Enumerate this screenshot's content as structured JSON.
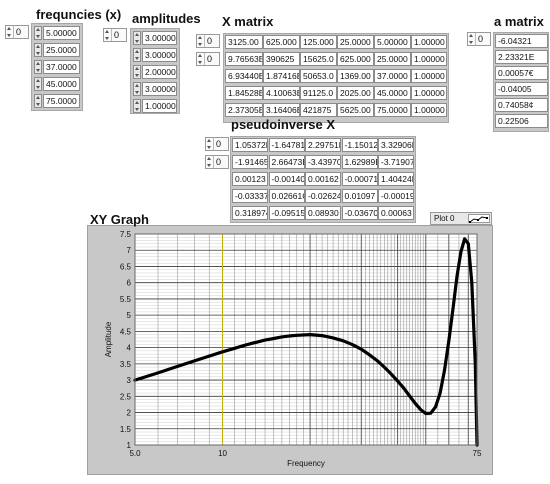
{
  "freq": {
    "title": "frequncies (x)",
    "index": "0",
    "values": [
      "5.00000",
      "25.0000",
      "37.0000",
      "45.0000",
      "75.0000"
    ]
  },
  "amp": {
    "title": "amplitudes",
    "index": "0",
    "values": [
      "3.00000",
      "3.00000",
      "2.00000",
      "3.00000",
      "1.00000"
    ]
  },
  "xmatrix": {
    "title": "X matrix",
    "index_row": "0",
    "index_col": "0",
    "rows": [
      [
        "3125.00",
        "625.000",
        "125.000",
        "25.0000",
        "5.00000",
        "1.00000"
      ],
      [
        "9.76563E",
        "390625",
        "15625.0",
        "625.000",
        "25.0000",
        "1.00000"
      ],
      [
        "6.93440E",
        "1.87416E",
        "50653.0",
        "1369.00",
        "37.0000",
        "1.00000"
      ],
      [
        "1.84528E",
        "4.10063E",
        "91125.0",
        "2025.00",
        "45.0000",
        "1.00000"
      ],
      [
        "2.37305E",
        "3.16406E",
        "421875",
        "5625.00",
        "75.0000",
        "1.00000"
      ]
    ]
  },
  "amatrix": {
    "title": "a matrix",
    "index": "0",
    "values": [
      "-6.04321",
      "2.23321E",
      "0.00057€",
      "-0.04005",
      "0.74058¢",
      "0.22506"
    ]
  },
  "pinv": {
    "title": "pseudoinverse X",
    "index_row": "0",
    "index_col": "0",
    "rows": [
      [
        "1.05372E",
        "-1.64781",
        "2.29751E",
        "-1.15012",
        "3.32906E"
      ],
      [
        "-1.91465",
        "2.66473E",
        "-3.43970",
        "1.62989E",
        "-3.71907"
      ],
      [
        "0.00123",
        "-0.00140",
        "0.00162",
        "-0.00071",
        "1.40424E"
      ],
      [
        "-0.03337",
        "0.02661C",
        "-0.02624",
        "0.01097",
        "-0.00019"
      ],
      [
        "0.318974",
        "-0.09515",
        "0.08930",
        "-0.03670",
        "0.00063"
      ]
    ]
  },
  "graph": {
    "title": "XY Graph",
    "legend_label": "Plot 0"
  },
  "chart_data": {
    "type": "line",
    "title": "XY Graph",
    "xlabel": "Frequency",
    "ylabel": "Amplitude",
    "x_scale": "log",
    "xlim": [
      5,
      75
    ],
    "ylim": [
      1,
      7.5
    ],
    "x_tick_labels": [
      "5.0",
      "10",
      "75"
    ],
    "y_ticks": [
      1,
      1.5,
      2,
      2.5,
      3,
      3.5,
      4,
      4.5,
      5,
      5.5,
      6,
      6.5,
      7,
      7.5
    ],
    "y_tick_labels": [
      "1",
      "1.5",
      "2",
      "2.5",
      "3",
      "3.5",
      "4",
      "4.5",
      "5",
      "5.5",
      "6",
      "6.5",
      "7",
      "7.5"
    ],
    "grid": true,
    "series_color": "#000000",
    "series": [
      {
        "name": "Plot 0",
        "x": [
          5,
          6,
          7,
          8,
          9,
          10,
          11,
          12,
          13,
          14,
          15,
          16,
          17,
          18,
          20,
          22,
          24,
          26,
          28,
          30,
          32,
          34,
          36,
          38,
          40,
          42,
          44,
          46,
          48,
          50,
          52,
          54,
          56,
          58,
          60,
          62,
          64,
          66,
          68,
          70,
          72,
          74,
          75
        ],
        "y": [
          3.0,
          3.22,
          3.42,
          3.59,
          3.74,
          3.87,
          3.98,
          4.08,
          4.16,
          4.23,
          4.28,
          4.33,
          4.36,
          4.38,
          4.4,
          4.37,
          4.3,
          4.21,
          4.09,
          3.95,
          3.78,
          3.6,
          3.4,
          3.19,
          2.97,
          2.75,
          2.51,
          2.28,
          2.09,
          1.97,
          1.98,
          2.17,
          2.6,
          3.3,
          4.2,
          5.2,
          6.2,
          6.95,
          7.35,
          7.2,
          6.0,
          3.5,
          1.0
        ]
      }
    ]
  }
}
